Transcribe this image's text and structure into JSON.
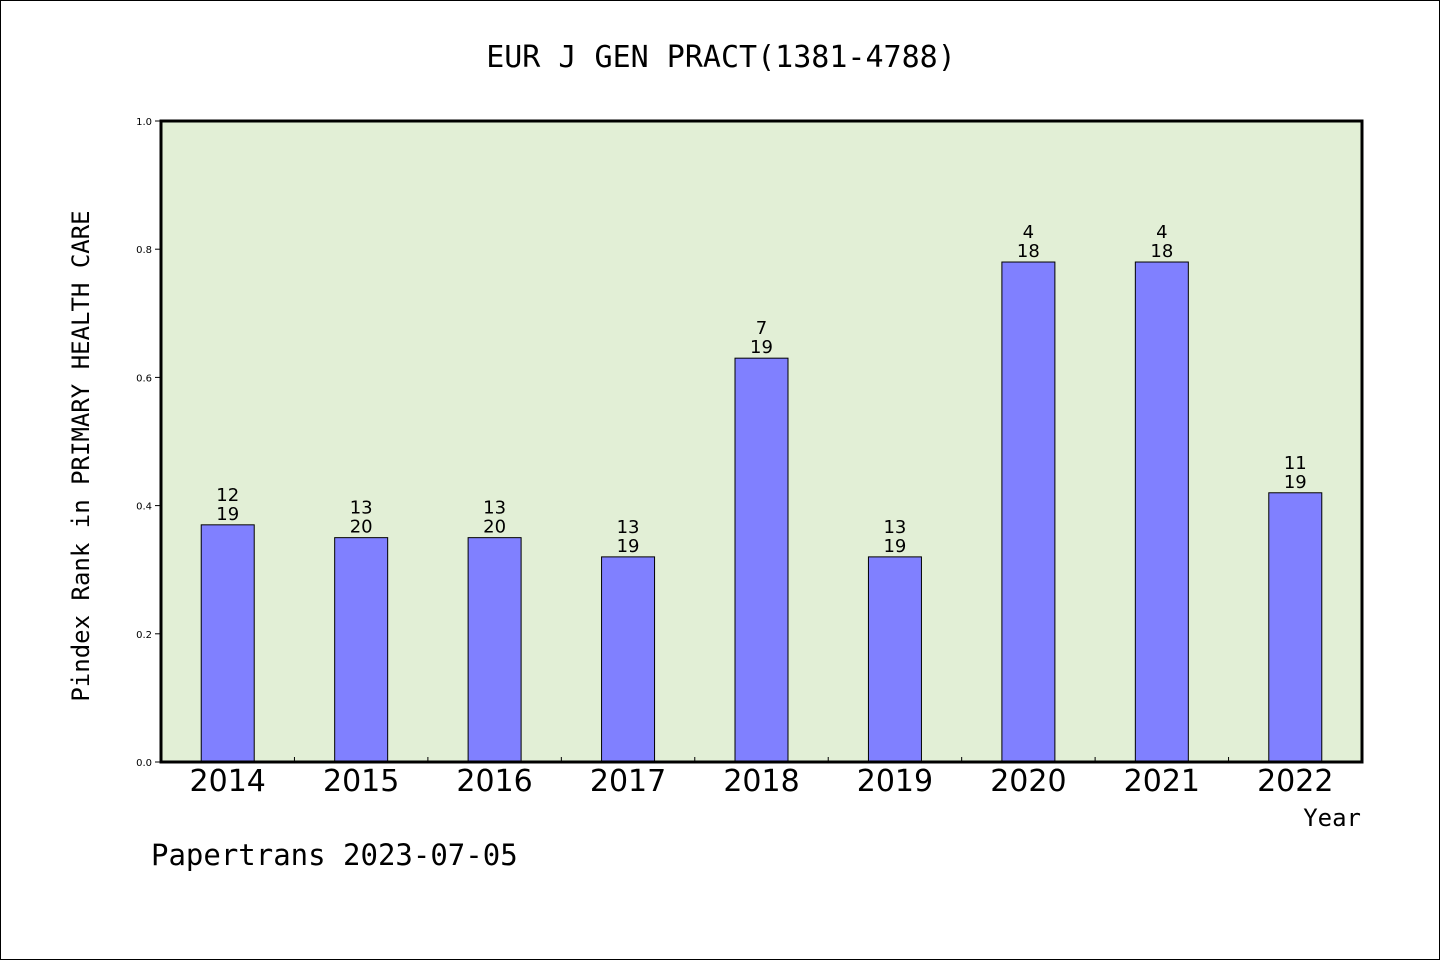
{
  "chart_data": {
    "type": "bar",
    "title": "EUR J GEN PRACT(1381-4788)",
    "xlabel": "Year",
    "ylabel": "Pindex Rank in PRIMARY HEALTH CARE",
    "categories": [
      "2014",
      "2015",
      "2016",
      "2017",
      "2018",
      "2019",
      "2020",
      "2021",
      "2022"
    ],
    "values": [
      0.37,
      0.35,
      0.35,
      0.32,
      0.63,
      0.32,
      0.78,
      0.78,
      0.42
    ],
    "rank": [
      "12",
      "13",
      "13",
      "13",
      "7",
      "13",
      "4",
      "4",
      "11"
    ],
    "total": [
      "19",
      "20",
      "20",
      "19",
      "19",
      "19",
      "18",
      "18",
      "19"
    ],
    "ylim": [
      0,
      1.0
    ],
    "yticks": [
      "0.0",
      "0.2",
      "0.4",
      "0.6",
      "0.8",
      "1.0"
    ],
    "grid": false,
    "colors": {
      "bar": "#8080ff",
      "plot_bg": "#e2efd6"
    }
  },
  "footer": "Papertrans 2023-07-05"
}
